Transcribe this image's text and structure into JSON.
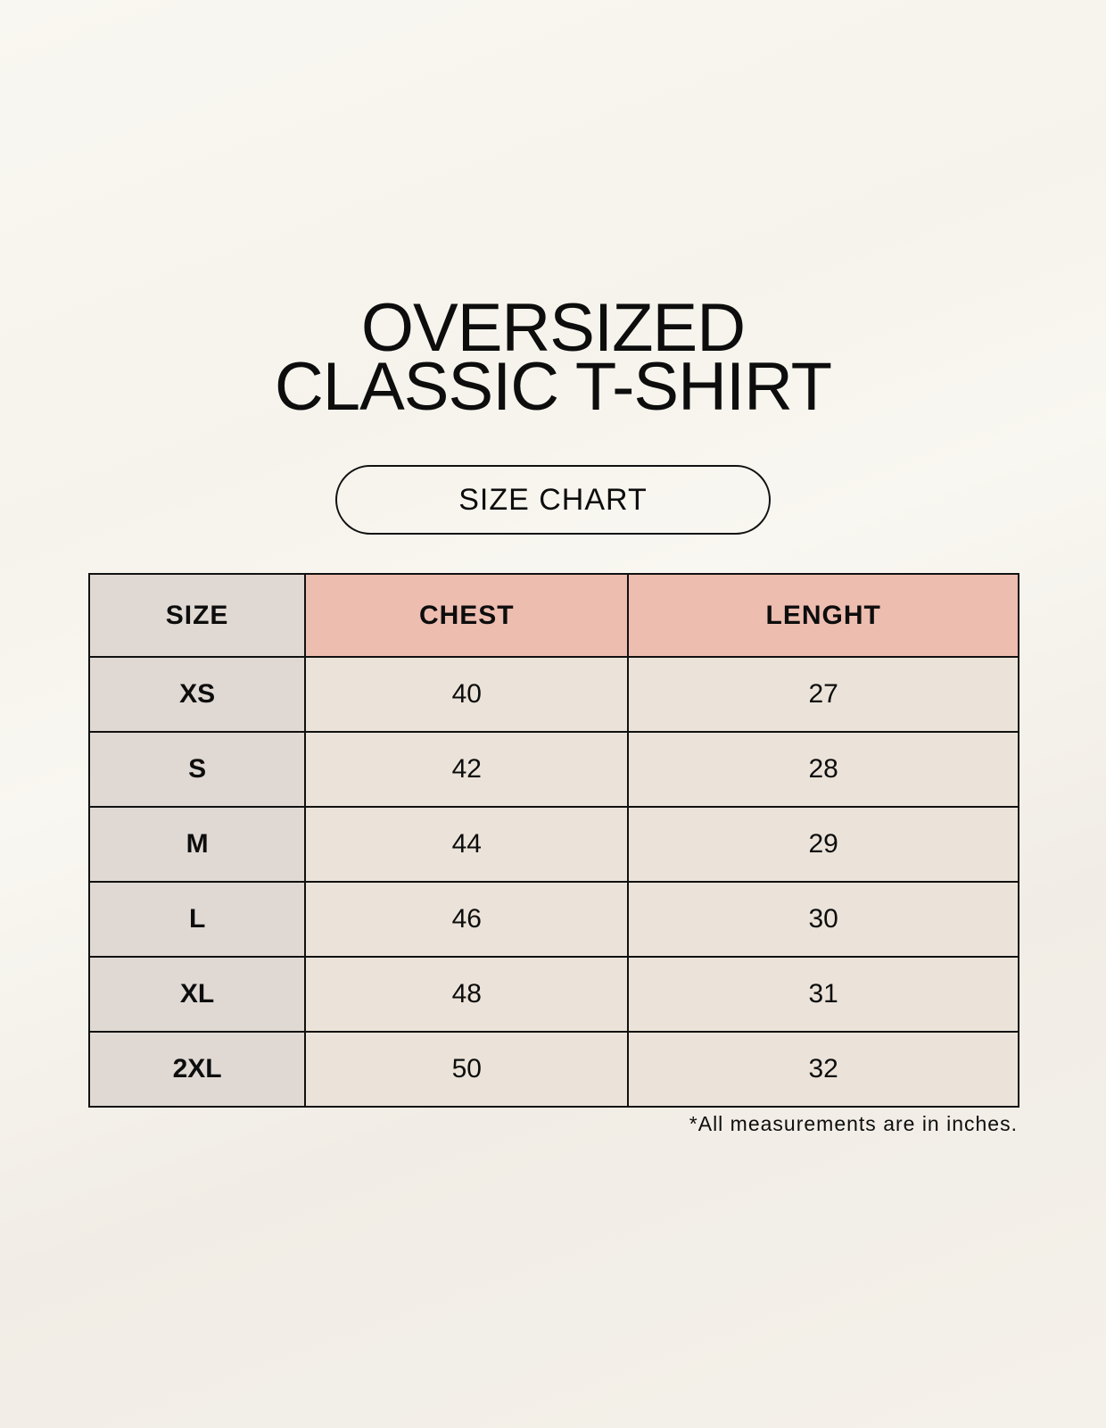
{
  "title_line1": "OVERSIZED",
  "title_line2": "CLASSIC T-SHIRT",
  "subtitle": "SIZE CHART",
  "table": {
    "headers": [
      "SIZE",
      "CHEST",
      "LENGHT"
    ],
    "rows": [
      [
        "XS",
        "40",
        "27"
      ],
      [
        "S",
        "42",
        "28"
      ],
      [
        "M",
        "44",
        "29"
      ],
      [
        "L",
        "46",
        "30"
      ],
      [
        "XL",
        "48",
        "31"
      ],
      [
        "2XL",
        "50",
        "32"
      ]
    ]
  },
  "footnote": "*All measurements are in inches.",
  "colors": {
    "size_column": "#e0d9d3",
    "header_accent": "#edbdb0",
    "value_cells": "#ebe3d9"
  }
}
